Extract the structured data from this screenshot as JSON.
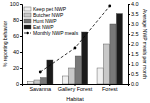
{
  "chart_data": {
    "type": "bar",
    "categories": [
      "Savanna",
      "Gallery Forest",
      "Forest"
    ],
    "xlabel": "Habitat",
    "ylabel": "% reporting behavior",
    "y2label": "Average NWP meals per month",
    "ylim": [
      0,
      100
    ],
    "yticks": [
      0,
      20,
      40,
      60,
      80,
      100
    ],
    "y2lim": [
      0,
      4
    ],
    "y2ticks": [
      {
        "value": 0,
        "label": "0.0"
      },
      0.5,
      {
        "value": 1.0,
        "label": "1.0"
      },
      1.5,
      {
        "value": 2.0,
        "label": "2.0"
      },
      2.5,
      {
        "value": 3.0,
        "label": "3.0"
      },
      3.5,
      {
        "value": 4.0,
        "label": "4.0"
      }
    ],
    "series": [
      {
        "name": "Keep pet NWP",
        "color": "#f0f0f0",
        "values": [
          3,
          10,
          20
        ]
      },
      {
        "name": "Butcher NWP",
        "color": "#c8c8c8",
        "values": [
          5,
          20,
          50
        ]
      },
      {
        "name": "Hunt NWP",
        "color": "#787878",
        "values": [
          8,
          35,
          75
        ]
      },
      {
        "name": "Eat NWP",
        "color": "#1a1a1a",
        "values": [
          30,
          65,
          88
        ]
      },
      {
        "name": "Monthly NWP meals",
        "type": "line",
        "axis": "y2",
        "color": "#000000",
        "marker": "circle",
        "line_style": "dashed",
        "values": [
          0.6,
          1.8,
          3.9
        ]
      }
    ],
    "legend": "upper left",
    "grid": false
  }
}
